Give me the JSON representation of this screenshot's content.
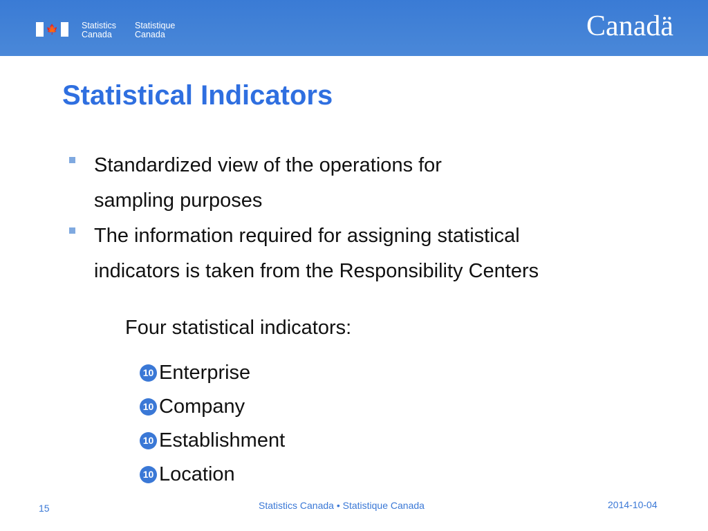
{
  "header": {
    "sig_en": [
      "Statistics",
      "Canada"
    ],
    "sig_fr": [
      "Statistique",
      "Canada"
    ],
    "wordmark": "Canadä",
    "brand_color": "#3a7bd5"
  },
  "title": "Statistical Indicators",
  "bullets": [
    {
      "lines": [
        "Standardized view of the operations for",
        "sampling purposes"
      ]
    },
    {
      "lines": [
        "The information required for assigning statistical",
        "indicators is taken from the Responsibility Centers"
      ]
    }
  ],
  "subheading": "Four statistical indicators:",
  "items": [
    {
      "marker": "10",
      "label": "Enterprise"
    },
    {
      "marker": "10",
      "label": "Company"
    },
    {
      "marker": "10",
      "label": "Establishment"
    },
    {
      "marker": "10",
      "label": "Location"
    }
  ],
  "footer": {
    "page": "15",
    "center": "Statistics Canada • Statistique Canada",
    "date": "2014-10-04"
  }
}
